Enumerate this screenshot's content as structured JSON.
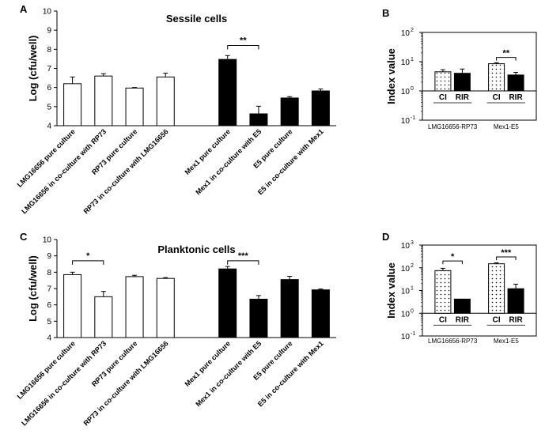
{
  "chart_data": [
    {
      "id": "A",
      "panel_label": "A",
      "type": "bar",
      "title": "Sessile cells",
      "ylabel": "Log (cfu/well)",
      "ylim": [
        4,
        10
      ],
      "yticks": [
        4,
        5,
        6,
        7,
        8,
        9,
        10
      ],
      "scale": "linear",
      "categories": [
        "LMG16656 pure culture",
        "LMG16656 in co-culture with RP73",
        "RP73 pure culture",
        "RP73 in co-culture with LMG16656",
        "",
        "Mex1 pure culture",
        "Mex1 in co-culture with E5",
        "E5 pure culture",
        "E5 in co-culture with Mex1"
      ],
      "values": [
        6.2,
        6.6,
        5.97,
        6.55,
        null,
        7.47,
        4.62,
        5.45,
        5.82
      ],
      "errors": [
        0.35,
        0.12,
        0.03,
        0.2,
        null,
        0.2,
        0.4,
        0.07,
        0.1
      ],
      "fills": [
        "#ffffff",
        "#ffffff",
        "#ffffff",
        "#ffffff",
        null,
        "#000000",
        "#000000",
        "#000000",
        "#000000"
      ],
      "significance": [
        {
          "from": 5,
          "to": 6,
          "label": "**",
          "level": 8.2
        }
      ]
    },
    {
      "id": "B",
      "panel_label": "B",
      "type": "bar",
      "ylabel": "Index value",
      "scale": "log",
      "ylim_exp": [
        -1,
        2
      ],
      "ytick_exps": [
        2,
        1,
        0,
        -1
      ],
      "tick_base": "10",
      "categories": [
        "CI",
        "RIR",
        "CI",
        "RIR"
      ],
      "values": [
        4.5,
        4.0,
        8.5,
        3.5
      ],
      "err_hi": [
        5.3,
        5.6,
        9.2,
        4.3
      ],
      "patterns": [
        "dots",
        "solid",
        "dots",
        "solid"
      ],
      "groups": [
        {
          "label": "LMG16656-RP73",
          "from": 0,
          "to": 1
        },
        {
          "label": "Mex1-E5",
          "from": 2,
          "to": 3
        }
      ],
      "significance": [
        {
          "from": 2,
          "to": 3,
          "label": "**",
          "level": 14
        }
      ]
    },
    {
      "id": "C",
      "panel_label": "C",
      "type": "bar",
      "title": "Planktonic cells",
      "ylabel": "Log (cfu/well)",
      "ylim": [
        4,
        10
      ],
      "yticks": [
        4,
        5,
        6,
        7,
        8,
        9,
        10
      ],
      "scale": "linear",
      "categories": [
        "LMG16656 pure culture",
        "LMG16656 in co-culture with RP73",
        "RP73 pure culture",
        "RP73 in co-culture with LMG16656",
        "",
        "Mex1 pure culture",
        "Mex1 in co-culture with E5",
        "E5 pure culture",
        "E5 in co-culture with Mex1"
      ],
      "values": [
        7.85,
        6.5,
        7.73,
        7.62,
        null,
        8.2,
        6.35,
        7.55,
        6.92
      ],
      "errors": [
        0.15,
        0.32,
        0.08,
        0.05,
        null,
        0.15,
        0.22,
        0.2,
        0.05
      ],
      "fills": [
        "#ffffff",
        "#ffffff",
        "#ffffff",
        "#ffffff",
        null,
        "#000000",
        "#000000",
        "#000000",
        "#000000"
      ],
      "significance": [
        {
          "from": 0,
          "to": 1,
          "label": "*",
          "level": 8.7
        },
        {
          "from": 5,
          "to": 6,
          "label": "***",
          "level": 8.7
        }
      ]
    },
    {
      "id": "D",
      "panel_label": "D",
      "type": "bar",
      "ylabel": "Index value",
      "scale": "log",
      "ylim_exp": [
        -1,
        3
      ],
      "ytick_exps": [
        3,
        2,
        1,
        0,
        -1
      ],
      "tick_base": "10",
      "categories": [
        "CI",
        "RIR",
        "CI",
        "RIR"
      ],
      "values": [
        75,
        4.2,
        150,
        12
      ],
      "err_hi": [
        95,
        4.2,
        165,
        19
      ],
      "patterns": [
        "dots",
        "solid",
        "dots",
        "solid"
      ],
      "groups": [
        {
          "label": "LMG16656-RP73",
          "from": 0,
          "to": 1
        },
        {
          "label": "Mex1-E5",
          "from": 2,
          "to": 3
        }
      ],
      "significance": [
        {
          "from": 0,
          "to": 1,
          "label": "*",
          "level": 200
        },
        {
          "from": 2,
          "to": 3,
          "label": "***",
          "level": 300
        }
      ]
    }
  ]
}
